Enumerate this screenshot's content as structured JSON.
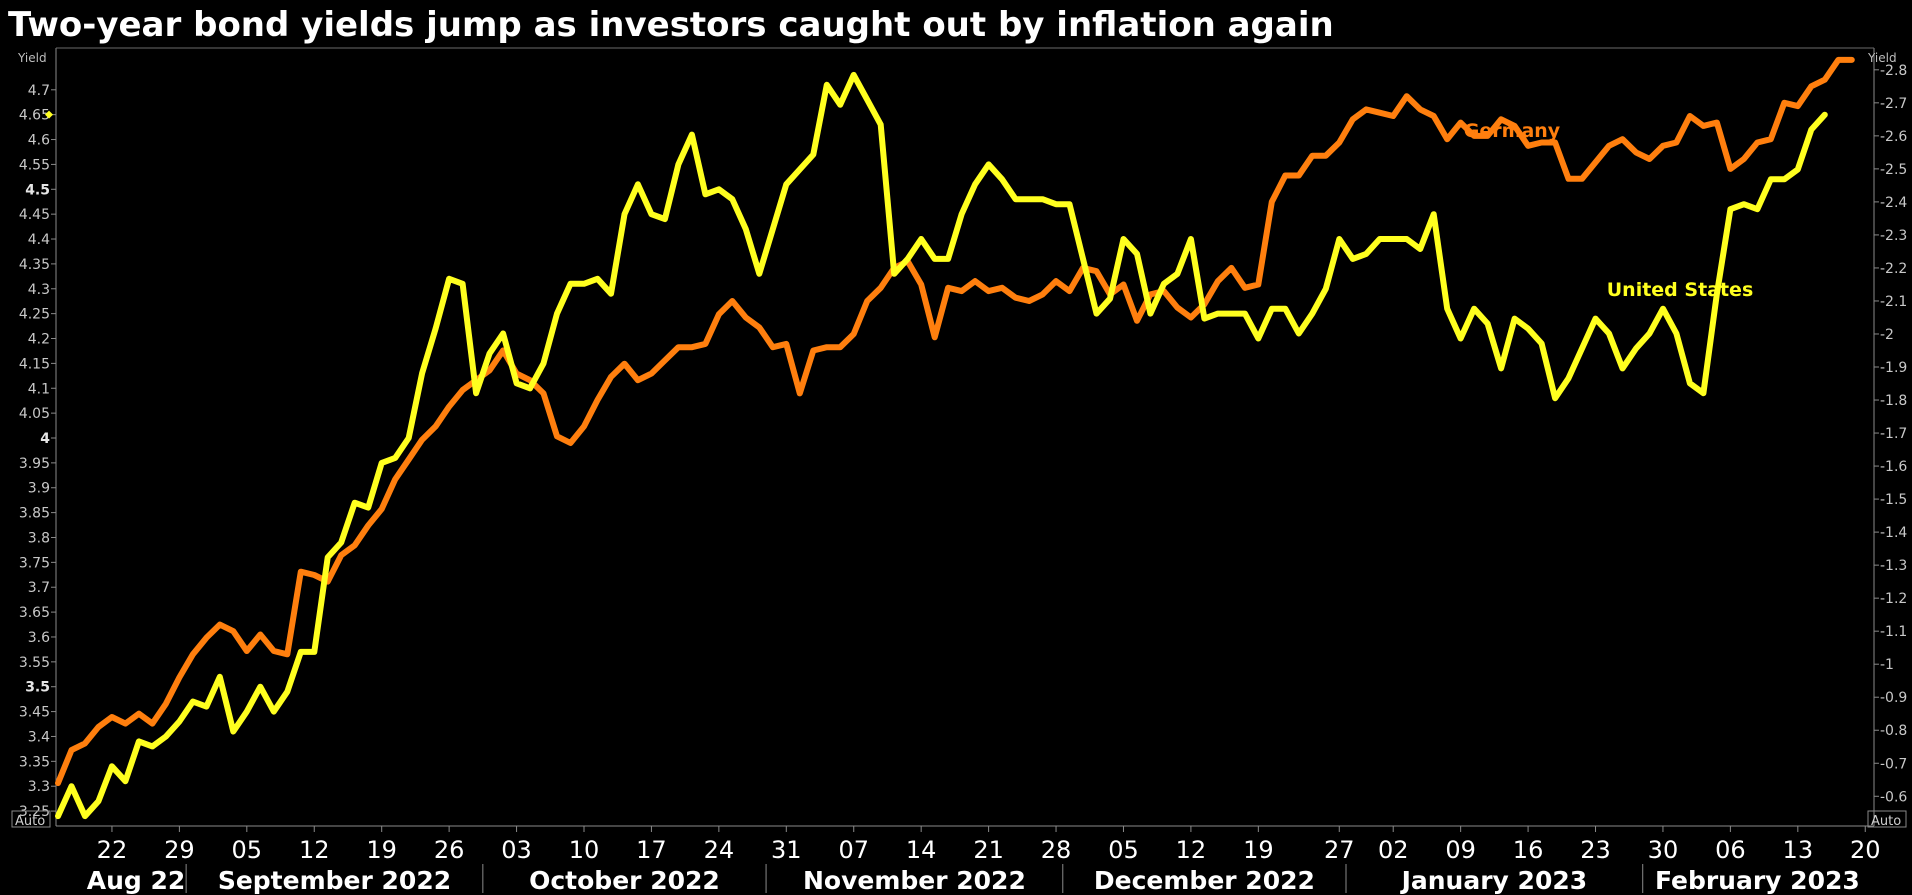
{
  "chart_data": {
    "type": "line",
    "title": "Two-year bond yields jump as investors caught out by inflation again",
    "left_axis": {
      "label": "Yield",
      "ylim": [
        3.22,
        4.78
      ],
      "ticks": [
        "4.7",
        "4.65",
        "4.6",
        "4.55",
        "4.5",
        "4.45",
        "4.4",
        "4.35",
        "4.3",
        "4.25",
        "4.2",
        "4.15",
        "4.1",
        "4.05",
        "4",
        "3.95",
        "3.9",
        "3.85",
        "3.8",
        "3.75",
        "3.7",
        "3.65",
        "3.6",
        "3.55",
        "3.5",
        "3.45",
        "3.4",
        "3.35",
        "3.3",
        "3.25"
      ],
      "bold_ticks": [
        "4.5",
        "4",
        "3.5"
      ],
      "marker_value": "4.65",
      "auto_label": "Auto"
    },
    "right_axis": {
      "label": "Yield",
      "ylim": [
        0.51,
        2.86
      ],
      "ticks": [
        "-2.8",
        "-2.7",
        "-2.6",
        "-2.5",
        "-2.4",
        "-2.3",
        "-2.2",
        "-2.1",
        "-2",
        "-1.9",
        "-1.8",
        "-1.7",
        "-1.6",
        "-1.5",
        "-1.4",
        "-1.3",
        "-1.2",
        "-1.1",
        "-1",
        "-0.9",
        "-0.8",
        "-0.7",
        "-0.6"
      ],
      "auto_label": "Auto"
    },
    "x_axis": {
      "day_ticks": [
        {
          "label": "22",
          "index": 4
        },
        {
          "label": "29",
          "index": 9
        },
        {
          "label": "05",
          "index": 14
        },
        {
          "label": "12",
          "index": 19
        },
        {
          "label": "19",
          "index": 24
        },
        {
          "label": "26",
          "index": 29
        },
        {
          "label": "03",
          "index": 34
        },
        {
          "label": "10",
          "index": 39
        },
        {
          "label": "17",
          "index": 44
        },
        {
          "label": "24",
          "index": 49
        },
        {
          "label": "31",
          "index": 54
        },
        {
          "label": "07",
          "index": 59
        },
        {
          "label": "14",
          "index": 64
        },
        {
          "label": "21",
          "index": 69
        },
        {
          "label": "28",
          "index": 74
        },
        {
          "label": "05",
          "index": 79
        },
        {
          "label": "12",
          "index": 84
        },
        {
          "label": "19",
          "index": 89
        },
        {
          "label": "27",
          "index": 95
        },
        {
          "label": "02",
          "index": 99
        },
        {
          "label": "09",
          "index": 104
        },
        {
          "label": "16",
          "index": 109
        },
        {
          "label": "23",
          "index": 114
        },
        {
          "label": "30",
          "index": 119
        },
        {
          "label": "06",
          "index": 124
        },
        {
          "label": "13",
          "index": 129
        },
        {
          "label": "20",
          "index": 134
        }
      ],
      "months": [
        {
          "label": "Aug 22",
          "start": 0,
          "end": 9.5
        },
        {
          "label": "September 2022",
          "start": 9.5,
          "end": 31.5
        },
        {
          "label": "October 2022",
          "start": 31.5,
          "end": 52.5
        },
        {
          "label": "November 2022",
          "start": 52.5,
          "end": 74.5
        },
        {
          "label": "December 2022",
          "start": 74.5,
          "end": 95.5
        },
        {
          "label": "January 2023",
          "start": 95.5,
          "end": 117.5
        },
        {
          "label": "February 2023",
          "start": 117.5,
          "end": 134.5
        }
      ],
      "domain": [
        0,
        134.5
      ]
    },
    "series": [
      {
        "name": "Germany",
        "axis": "right",
        "color": "#ff7f0e",
        "values": [
          0.64,
          0.74,
          0.76,
          0.81,
          0.84,
          0.82,
          0.85,
          0.82,
          0.88,
          0.96,
          1.03,
          1.08,
          1.12,
          1.1,
          1.04,
          1.09,
          1.04,
          1.03,
          1.28,
          1.27,
          1.25,
          1.33,
          1.36,
          1.42,
          1.47,
          1.56,
          1.62,
          1.68,
          1.72,
          1.78,
          1.83,
          1.86,
          1.89,
          1.95,
          1.88,
          1.86,
          1.82,
          1.69,
          1.67,
          1.72,
          1.8,
          1.87,
          1.91,
          1.86,
          1.88,
          1.92,
          1.96,
          1.96,
          1.97,
          2.06,
          2.1,
          2.05,
          2.02,
          1.96,
          1.97,
          1.82,
          1.95,
          1.96,
          1.96,
          2.0,
          2.1,
          2.14,
          2.2,
          2.22,
          2.15,
          1.99,
          2.14,
          2.13,
          2.16,
          2.13,
          2.14,
          2.11,
          2.1,
          2.12,
          2.16,
          2.13,
          2.2,
          2.19,
          2.12,
          2.15,
          2.04,
          2.12,
          2.13,
          2.08,
          2.05,
          2.09,
          2.16,
          2.2,
          2.14,
          2.15,
          2.4,
          2.48,
          2.48,
          2.54,
          2.54,
          2.58,
          2.65,
          2.68,
          2.67,
          2.66,
          2.72,
          2.68,
          2.66,
          2.59,
          2.64,
          2.6,
          2.6,
          2.65,
          2.63,
          2.57,
          2.58,
          2.58,
          2.47,
          2.47,
          2.52,
          2.57,
          2.59,
          2.55,
          2.53,
          2.57,
          2.58,
          2.66,
          2.63,
          2.64,
          2.5,
          2.53,
          2.58,
          2.59,
          2.7,
          2.69,
          2.75,
          2.77,
          2.83,
          2.83
        ]
      },
      {
        "name": "United States",
        "axis": "left",
        "color": "#ffff1f",
        "values": [
          3.24,
          3.3,
          3.24,
          3.27,
          3.34,
          3.31,
          3.39,
          3.38,
          3.4,
          3.43,
          3.47,
          3.46,
          3.52,
          3.41,
          3.45,
          3.5,
          3.45,
          3.49,
          3.57,
          3.57,
          3.76,
          3.79,
          3.87,
          3.86,
          3.95,
          3.96,
          4.0,
          4.13,
          4.22,
          4.32,
          4.31,
          4.09,
          4.17,
          4.21,
          4.11,
          4.1,
          4.15,
          4.25,
          4.31,
          4.31,
          4.32,
          4.29,
          4.45,
          4.51,
          4.45,
          4.44,
          4.55,
          4.61,
          4.49,
          4.5,
          4.48,
          4.42,
          4.33,
          4.42,
          4.51,
          4.54,
          4.57,
          4.71,
          4.67,
          4.73,
          4.68,
          4.63,
          4.33,
          4.36,
          4.4,
          4.36,
          4.36,
          4.45,
          4.51,
          4.55,
          4.52,
          4.48,
          4.48,
          4.48,
          4.47,
          4.47,
          4.36,
          4.25,
          4.28,
          4.4,
          4.37,
          4.25,
          4.31,
          4.33,
          4.4,
          4.24,
          4.25,
          4.25,
          4.25,
          4.2,
          4.26,
          4.26,
          4.21,
          4.25,
          4.3,
          4.4,
          4.36,
          4.37,
          4.4,
          4.4,
          4.4,
          4.38,
          4.45,
          4.26,
          4.2,
          4.26,
          4.23,
          4.14,
          4.24,
          4.22,
          4.19,
          4.08,
          4.12,
          4.18,
          4.24,
          4.21,
          4.14,
          4.18,
          4.21,
          4.26,
          4.21,
          4.11,
          4.09,
          4.29,
          4.46,
          4.47,
          4.46,
          4.52,
          4.52,
          4.54,
          4.62,
          4.65
        ]
      }
    ],
    "legend": [
      {
        "label": "Germany",
        "color": "#ff7f0e",
        "placement": "upper-right"
      },
      {
        "label": "United States",
        "color": "#ffff1f",
        "placement": "right"
      }
    ]
  }
}
